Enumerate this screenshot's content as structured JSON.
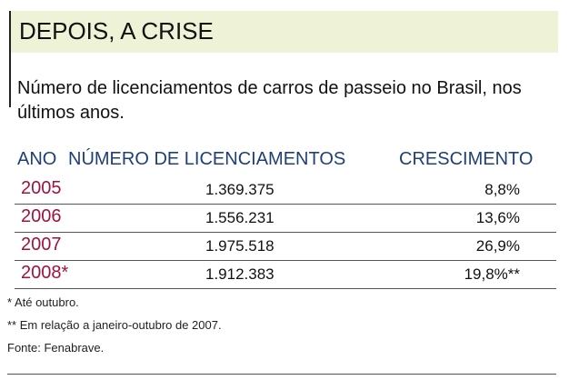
{
  "title": "DEPOIS, A CRISE",
  "subtitle": "Número de licenciamentos de carros de passeio no Brasil, nos últimos anos.",
  "table": {
    "headers": {
      "ano": "ANO",
      "numero": "NÚMERO DE LICENCIAMENTOS",
      "crescimento": "CRESCIMENTO"
    },
    "rows": [
      {
        "year": "2005",
        "number": "1.369.375",
        "growth": "8,8%"
      },
      {
        "year": "2006",
        "number": "1.556.231",
        "growth": "13,6%"
      },
      {
        "year": "2007",
        "number": "1.975.518",
        "growth": "26,9%"
      },
      {
        "year": "2008*",
        "number": "1.912.383",
        "growth": "19,8%**"
      }
    ]
  },
  "notes": {
    "note1": "*  Até outubro.",
    "note2": "** Em relação a janeiro-outubro de 2007.",
    "source": "Fonte: Fenabrave."
  },
  "colors": {
    "title_bg": "#eef3d8",
    "header_text": "#1f3f7a",
    "year_text": "#a0123f"
  }
}
